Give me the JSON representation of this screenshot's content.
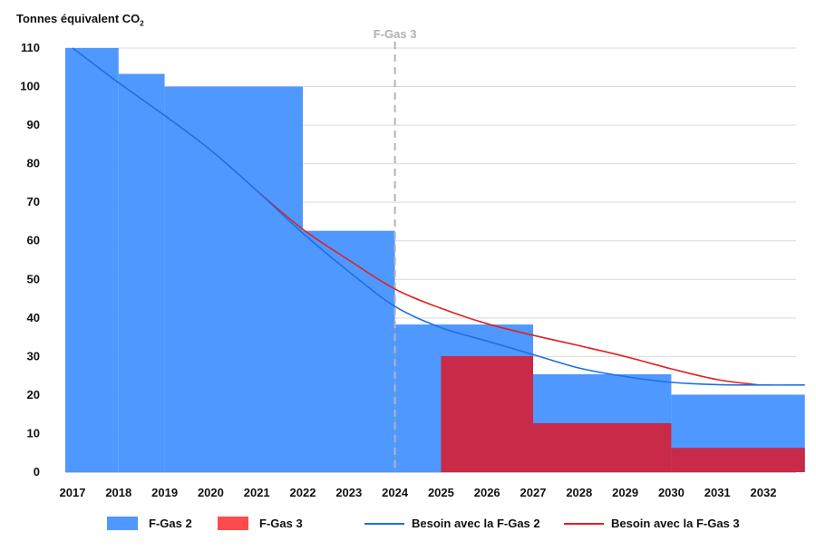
{
  "chart_data": {
    "type": "bar",
    "ylabel": "Tonnes équivalent CO",
    "ylabel_sub": "2",
    "ylim": [
      0,
      110
    ],
    "yticks": [
      0,
      10,
      20,
      30,
      40,
      50,
      60,
      70,
      80,
      90,
      100,
      110
    ],
    "xticks": [
      "2017",
      "2018",
      "2019",
      "2020",
      "2021",
      "2022",
      "2023",
      "2024",
      "2025",
      "2026",
      "2027",
      "2028",
      "2029",
      "2030",
      "2031",
      "2032"
    ],
    "grid": true,
    "annotation": {
      "label": "F-Gas 3",
      "x": 2024,
      "style": "dashed"
    },
    "series": [
      {
        "name": "F-Gas 2",
        "kind": "step-area",
        "color": "#4f98ff",
        "steps": [
          {
            "from": 2017.0,
            "to": 2018.0,
            "value": 110
          },
          {
            "from": 2018.0,
            "to": 2019.0,
            "value": 103.3
          },
          {
            "from": 2019.0,
            "to": 2022.0,
            "value": 100
          },
          {
            "from": 2022.0,
            "to": 2024.0,
            "value": 62.6
          },
          {
            "from": 2024.0,
            "to": 2027.0,
            "value": 38.3
          },
          {
            "from": 2027.0,
            "to": 2030.0,
            "value": 25.4
          },
          {
            "from": 2030.0,
            "to": 2032.9,
            "value": 20.1
          }
        ]
      },
      {
        "name": "F-Gas 3",
        "kind": "step-area",
        "color": "#c82a48",
        "legend_color": "#ff4b4b",
        "steps": [
          {
            "from": 2025.0,
            "to": 2027.0,
            "value": 30.1
          },
          {
            "from": 2027.0,
            "to": 2030.0,
            "value": 12.7
          },
          {
            "from": 2030.0,
            "to": 2032.9,
            "value": 6.3
          }
        ]
      },
      {
        "name": "Besoin avec la F-Gas 2",
        "kind": "line",
        "color": "#1f6ee6",
        "points": [
          [
            2017,
            110
          ],
          [
            2018,
            101
          ],
          [
            2019,
            92.5
          ],
          [
            2020,
            83.5
          ],
          [
            2021,
            73
          ],
          [
            2022,
            62
          ],
          [
            2023,
            52
          ],
          [
            2024,
            43
          ],
          [
            2025,
            37.5
          ],
          [
            2026,
            34
          ],
          [
            2027,
            30.5
          ],
          [
            2028,
            27
          ],
          [
            2029,
            24.8
          ],
          [
            2030,
            23.3
          ],
          [
            2031,
            22.7
          ],
          [
            2032,
            22.6
          ],
          [
            2032.9,
            22.6
          ]
        ]
      },
      {
        "name": "Besoin avec la F-Gas 3",
        "kind": "line",
        "color": "#e02020",
        "points": [
          [
            2021,
            73
          ],
          [
            2022,
            63
          ],
          [
            2023,
            55
          ],
          [
            2024,
            47.5
          ],
          [
            2025,
            42.5
          ],
          [
            2026,
            38.5
          ],
          [
            2027,
            35.5
          ],
          [
            2028,
            32.8
          ],
          [
            2029,
            30
          ],
          [
            2030,
            26.8
          ],
          [
            2031,
            24
          ],
          [
            2031.9,
            22.6
          ]
        ]
      }
    ]
  }
}
